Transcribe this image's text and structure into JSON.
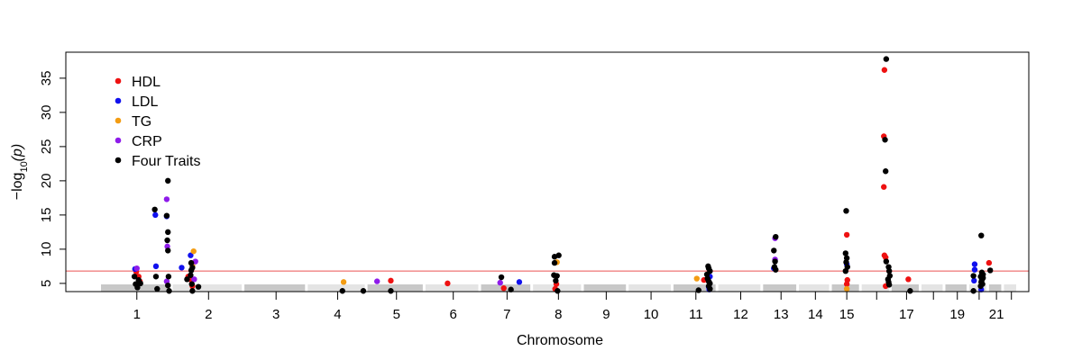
{
  "chart_data": {
    "type": "scatter",
    "subtype": "manhattan",
    "xlabel": "Chromosome",
    "ylabel_prefix": "−log",
    "ylabel_sub": "10",
    "ylabel_suffix": "(p)",
    "ylim": [
      3.8,
      38.8
    ],
    "yticks": [
      5,
      10,
      15,
      20,
      25,
      30,
      35
    ],
    "grid": false,
    "legend_position": "top-left",
    "threshold": {
      "y": 6.8,
      "color": "#f08080"
    },
    "chromosomes": [
      {
        "label": "1",
        "start": 0,
        "end": 12
      },
      {
        "label": "2",
        "start": 12,
        "end": 24
      },
      {
        "label": "3",
        "start": 24,
        "end": 34.6
      },
      {
        "label": "4",
        "start": 34.6,
        "end": 44.6
      },
      {
        "label": "5",
        "start": 44.6,
        "end": 54.3
      },
      {
        "label": "6",
        "start": 54.3,
        "end": 63.6
      },
      {
        "label": "7",
        "start": 63.6,
        "end": 72.3
      },
      {
        "label": "8",
        "start": 72.3,
        "end": 80.8
      },
      {
        "label": "9",
        "start": 80.8,
        "end": 88.3
      },
      {
        "label": "10",
        "start": 88.3,
        "end": 95.8
      },
      {
        "label": "11",
        "start": 95.8,
        "end": 103.3
      },
      {
        "label": "12",
        "start": 103.3,
        "end": 110.8
      },
      {
        "label": "13",
        "start": 110.8,
        "end": 116.8
      },
      {
        "label": "14",
        "start": 116.8,
        "end": 122.3
      },
      {
        "label": "15",
        "start": 122.3,
        "end": 127.3
      },
      {
        "label": "",
        "start": 127.3,
        "end": 132.3
      },
      {
        "label": "17",
        "start": 132.3,
        "end": 137.3
      },
      {
        "label": "",
        "start": 137.3,
        "end": 141.3
      },
      {
        "label": "19",
        "start": 141.3,
        "end": 145.3
      },
      {
        "label": "",
        "start": 145.3,
        "end": 148.6
      },
      {
        "label": "21",
        "start": 148.6,
        "end": 151.1
      },
      {
        "label": "",
        "start": 151.1,
        "end": 153.6
      }
    ],
    "series": [
      {
        "name": "HDL",
        "color": "#ee1111",
        "points": [
          [
            5.9,
            6.7
          ],
          [
            6.3,
            6.0
          ],
          [
            6.5,
            5.3
          ],
          [
            14.6,
            6.0
          ],
          [
            15.1,
            5.5
          ],
          [
            15.3,
            4.6
          ],
          [
            48.5,
            5.4
          ],
          [
            58.0,
            5.0
          ],
          [
            67.4,
            4.3
          ],
          [
            76.0,
            4.2
          ],
          [
            76.2,
            4.9
          ],
          [
            100.9,
            5.5
          ],
          [
            124.8,
            12.1
          ],
          [
            124.9,
            5.5
          ],
          [
            124.8,
            4.9
          ],
          [
            131.1,
            36.2
          ],
          [
            131.0,
            26.5
          ],
          [
            131.0,
            19.1
          ],
          [
            131.1,
            9.1
          ],
          [
            131.3,
            8.8
          ],
          [
            131.3,
            4.6
          ],
          [
            135.1,
            5.6
          ],
          [
            148.6,
            8.0
          ]
        ]
      },
      {
        "name": "LDL",
        "color": "#1111ee",
        "points": [
          [
            5.7,
            7.1
          ],
          [
            9.2,
            7.5
          ],
          [
            9.1,
            15.0
          ],
          [
            11.0,
            14.8
          ],
          [
            13.5,
            7.3
          ],
          [
            15.0,
            9.1
          ],
          [
            70.0,
            5.2
          ],
          [
            101.7,
            4.5
          ],
          [
            101.8,
            4.1
          ],
          [
            101.9,
            6.0
          ],
          [
            112.6,
            7.2
          ],
          [
            124.8,
            7.8
          ],
          [
            146.2,
            7.8
          ],
          [
            146.2,
            7.0
          ],
          [
            146.1,
            5.4
          ],
          [
            147.3,
            4.1
          ]
        ]
      },
      {
        "name": "TG",
        "color": "#f39c12",
        "points": [
          [
            15.5,
            9.7
          ],
          [
            15.3,
            7.6
          ],
          [
            40.6,
            5.2
          ],
          [
            76.3,
            8.1
          ],
          [
            99.7,
            5.7
          ],
          [
            124.8,
            4.2
          ]
        ]
      },
      {
        "name": "CRP",
        "color": "#8e1bea",
        "points": [
          [
            6.0,
            7.2
          ],
          [
            11.0,
            17.3
          ],
          [
            11.1,
            10.4
          ],
          [
            11.0,
            5.3
          ],
          [
            15.6,
            5.6
          ],
          [
            15.8,
            8.2
          ],
          [
            46.2,
            5.3
          ],
          [
            66.8,
            5.1
          ],
          [
            112.8,
            11.6
          ],
          [
            112.8,
            8.5
          ]
        ]
      },
      {
        "name": "Four Traits",
        "color": "#000000",
        "points": [
          [
            5.6,
            6.0
          ],
          [
            5.8,
            4.9
          ],
          [
            6.1,
            4.4
          ],
          [
            6.3,
            5.5
          ],
          [
            6.6,
            5.0
          ],
          [
            9.0,
            15.8
          ],
          [
            9.2,
            6.0
          ],
          [
            9.4,
            4.2
          ],
          [
            11.2,
            20.0
          ],
          [
            11.0,
            14.9
          ],
          [
            11.2,
            12.5
          ],
          [
            11.1,
            11.3
          ],
          [
            11.2,
            9.8
          ],
          [
            11.3,
            6.0
          ],
          [
            11.2,
            4.7
          ],
          [
            11.4,
            3.9
          ],
          [
            14.4,
            5.6
          ],
          [
            15.1,
            8.0
          ],
          [
            15.3,
            7.3
          ],
          [
            15.1,
            6.9
          ],
          [
            15.0,
            6.2
          ],
          [
            15.2,
            4.9
          ],
          [
            15.3,
            3.9
          ],
          [
            16.3,
            4.5
          ],
          [
            40.4,
            3.9
          ],
          [
            43.9,
            3.9
          ],
          [
            48.5,
            3.9
          ],
          [
            67.0,
            5.9
          ],
          [
            68.6,
            4.1
          ],
          [
            75.9,
            8.9
          ],
          [
            76.6,
            9.1
          ],
          [
            75.9,
            8.0
          ],
          [
            75.8,
            6.2
          ],
          [
            76.3,
            6.1
          ],
          [
            76.1,
            5.4
          ],
          [
            76.4,
            3.9
          ],
          [
            100.0,
            4.0
          ],
          [
            101.6,
            7.5
          ],
          [
            101.7,
            7.2
          ],
          [
            101.9,
            6.8
          ],
          [
            101.4,
            6.3
          ],
          [
            101.5,
            5.7
          ],
          [
            101.7,
            5.3
          ],
          [
            101.9,
            5.0
          ],
          [
            101.7,
            4.6
          ],
          [
            101.9,
            4.2
          ],
          [
            112.9,
            11.8
          ],
          [
            112.6,
            9.8
          ],
          [
            112.8,
            8.2
          ],
          [
            112.7,
            7.4
          ],
          [
            112.9,
            7.0
          ],
          [
            124.7,
            15.6
          ],
          [
            124.6,
            9.4
          ],
          [
            124.8,
            8.7
          ],
          [
            124.7,
            8.1
          ],
          [
            124.9,
            7.4
          ],
          [
            124.6,
            6.8
          ],
          [
            131.4,
            37.8
          ],
          [
            131.2,
            26.0
          ],
          [
            131.3,
            21.4
          ],
          [
            131.4,
            8.2
          ],
          [
            131.8,
            7.4
          ],
          [
            131.9,
            6.8
          ],
          [
            132.0,
            6.1
          ],
          [
            131.7,
            5.6
          ],
          [
            131.8,
            5.2
          ],
          [
            131.9,
            4.8
          ],
          [
            135.4,
            3.9
          ],
          [
            146.0,
            6.1
          ],
          [
            146.0,
            3.9
          ],
          [
            147.3,
            12.0
          ],
          [
            147.4,
            6.6
          ],
          [
            147.6,
            6.3
          ],
          [
            147.2,
            6.0
          ],
          [
            147.6,
            5.8
          ],
          [
            147.4,
            5.5
          ],
          [
            147.3,
            5.2
          ],
          [
            147.5,
            4.9
          ],
          [
            147.2,
            4.6
          ],
          [
            148.8,
            6.9
          ]
        ]
      }
    ]
  }
}
